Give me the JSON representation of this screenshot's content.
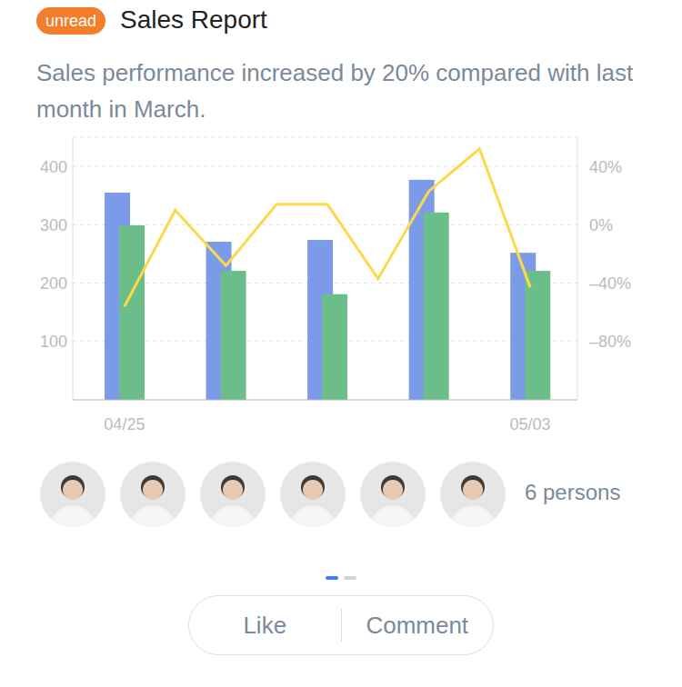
{
  "header": {
    "badge": "unread",
    "title": "Sales Report",
    "subtitle": "Sales performance increased by 20% compared with last month in March."
  },
  "chart_data": {
    "type": "bar",
    "categories": [
      "04/25",
      null,
      null,
      null,
      null,
      null,
      null,
      null,
      "05/03"
    ],
    "series": [
      {
        "type": "bar",
        "color": "#7b9be9",
        "values": [
          355,
          null,
          271,
          null,
          274,
          null,
          377,
          null,
          252
        ]
      },
      {
        "type": "bar",
        "color": "#6bbd8a",
        "values": [
          299,
          null,
          221,
          null,
          181,
          null,
          321,
          null,
          221
        ]
      },
      {
        "type": "line",
        "color": "#fdd94a",
        "axis": "y2",
        "values": [
          -56,
          10,
          -28,
          14,
          14,
          -37,
          23,
          52,
          -43
        ]
      }
    ],
    "ylim": [
      0,
      450
    ],
    "yticks": [
      100,
      200,
      300,
      400
    ],
    "y2lim": [
      -120,
      60
    ],
    "y2ticks": [
      {
        "value": 40,
        "label": "40%"
      },
      {
        "value": 0,
        "label": "0%"
      },
      {
        "value": -40,
        "label": "–40%"
      },
      {
        "value": -80,
        "label": "–80%"
      }
    ],
    "grid": true
  },
  "participants": {
    "count": 6,
    "label": "6 persons"
  },
  "actions": [
    "Like",
    "Comment"
  ]
}
